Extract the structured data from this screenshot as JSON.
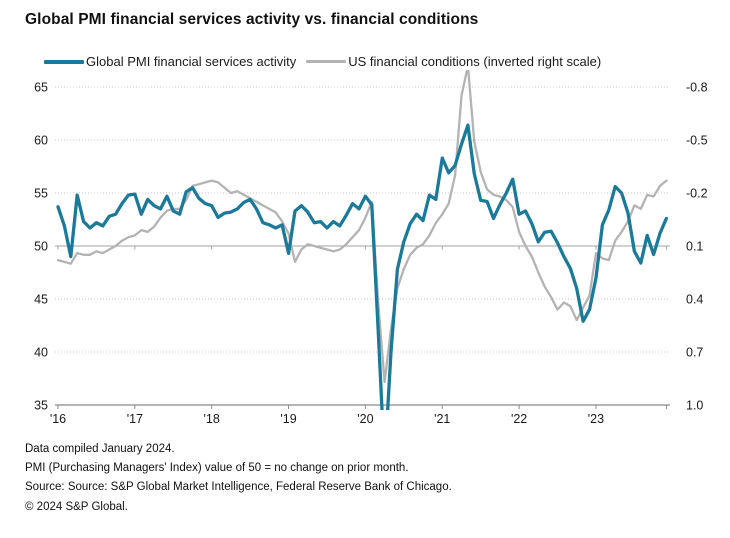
{
  "title": "Global PMI financial services activity vs. financial conditions",
  "legend": [
    {
      "label": "Global PMI financial services activity",
      "color": "#1b7a99"
    },
    {
      "label": "US financial conditions (inverted right scale)",
      "color": "#b3b3b3"
    }
  ],
  "footer": {
    "line1": "Data compiled January 2024.",
    "line2": "PMI (Purchasing Managers' Index) value of 50 = no change on prior month.",
    "line3": "Source: Source: S&P Global Market Intelligence, Federal Reserve Bank of Chicago.",
    "line4": "© 2024 S&P Global."
  },
  "chart_data": {
    "type": "line",
    "frequency": "monthly",
    "x_start": "2016-01",
    "x_end": "2023-12",
    "n_months": 96,
    "x_year_labels": [
      "'16",
      "'17",
      "'18",
      "'19",
      "'20",
      "'21",
      "'22",
      "'23"
    ],
    "left_axis": {
      "ticks": [
        65,
        60,
        55,
        50,
        45,
        40,
        35
      ],
      "range": [
        35,
        65
      ],
      "emphasized_tick": 50
    },
    "right_axis": {
      "ticks": [
        -0.8,
        -0.5,
        -0.2,
        0.1,
        0.4,
        0.7,
        1.0
      ],
      "range_top_to_bottom": [
        -0.8,
        1.0
      ],
      "inverted": true
    },
    "grid": true,
    "legend_position": "top",
    "colors": {
      "pmi_line": "#1b7a99",
      "fc_line": "#b3b3b3",
      "grid_light": "#c9c9c9",
      "grid_50": "#a3a3a3",
      "axis": "#8a8a8a",
      "label": "#1a1a1a"
    },
    "series": [
      {
        "name": "Global PMI financial services activity",
        "axis": "left",
        "color": "#1b7a99",
        "values": [
          53.7,
          51.9,
          49.0,
          54.8,
          52.3,
          51.7,
          52.2,
          51.9,
          52.8,
          53.0,
          54.0,
          54.8,
          54.9,
          53.0,
          54.4,
          53.8,
          53.5,
          54.7,
          53.3,
          53.0,
          55.1,
          55.5,
          54.5,
          54.0,
          53.8,
          52.7,
          53.1,
          53.2,
          53.5,
          54.1,
          54.4,
          53.5,
          52.2,
          52.0,
          51.7,
          52.0,
          49.3,
          53.3,
          53.8,
          53.2,
          52.2,
          52.3,
          51.7,
          52.3,
          51.9,
          52.9,
          54.0,
          53.5,
          54.7,
          53.9,
          42.0,
          29.5,
          40.0,
          47.8,
          50.4,
          52.1,
          53.0,
          52.4,
          54.8,
          54.4,
          58.3,
          56.9,
          57.6,
          59.6,
          61.4,
          56.8,
          54.3,
          54.2,
          52.6,
          53.9,
          55.0,
          56.3,
          53.0,
          53.3,
          52.1,
          50.4,
          51.3,
          51.4,
          50.3,
          49.0,
          47.9,
          46.0,
          42.9,
          44.0,
          47.0,
          52.0,
          53.4,
          55.6,
          55.0,
          53.1,
          49.5,
          48.4,
          51.0,
          49.2,
          51.2,
          52.6
        ]
      },
      {
        "name": "US financial conditions (inverted right scale)",
        "axis": "right",
        "color": "#b3b3b3",
        "values": [
          0.18,
          0.19,
          0.2,
          0.14,
          0.15,
          0.15,
          0.13,
          0.14,
          0.12,
          0.1,
          0.07,
          0.05,
          0.04,
          0.01,
          0.02,
          -0.01,
          -0.06,
          -0.1,
          -0.11,
          -0.11,
          -0.16,
          -0.24,
          -0.25,
          -0.26,
          -0.27,
          -0.26,
          -0.23,
          -0.2,
          -0.21,
          -0.19,
          -0.17,
          -0.15,
          -0.13,
          -0.11,
          -0.09,
          -0.04,
          0.03,
          0.19,
          0.12,
          0.09,
          0.1,
          0.11,
          0.12,
          0.13,
          0.12,
          0.09,
          0.05,
          0.01,
          -0.06,
          -0.15,
          0.42,
          0.87,
          0.57,
          0.34,
          0.23,
          0.15,
          0.11,
          0.09,
          0.04,
          -0.03,
          -0.08,
          -0.14,
          -0.3,
          -0.75,
          -0.92,
          -0.49,
          -0.32,
          -0.22,
          -0.19,
          -0.18,
          -0.16,
          -0.12,
          0.02,
          0.1,
          0.16,
          0.25,
          0.33,
          0.39,
          0.46,
          0.42,
          0.44,
          0.52,
          0.45,
          0.38,
          0.14,
          0.17,
          0.18,
          0.07,
          0.02,
          -0.04,
          -0.13,
          -0.11,
          -0.19,
          -0.18,
          -0.24,
          -0.27
        ]
      }
    ],
    "notes": "PMI April 2020 dips below the 35 axis and US financial conditions April–May 2021 rise above the -0.8 axis; both are clipped at the plot edges."
  }
}
